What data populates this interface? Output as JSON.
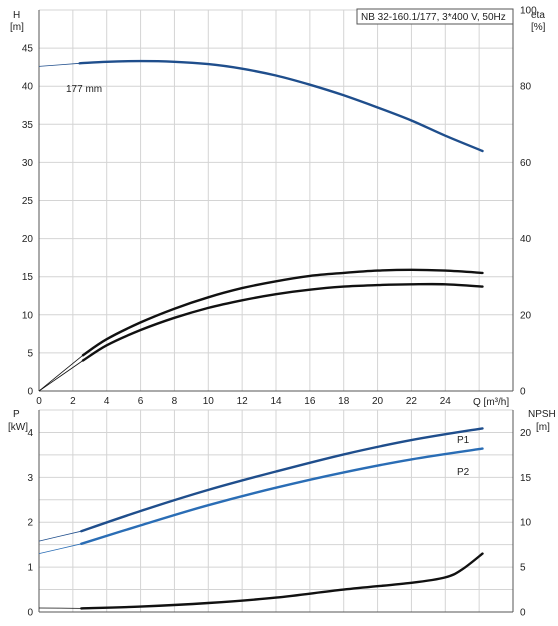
{
  "chart_data": [
    {
      "type": "line",
      "title": "NB 32-160.1/177, 3*400 V, 50Hz",
      "xlabel": "Q [m³/h]",
      "x_ticks": [
        0,
        2,
        4,
        6,
        8,
        10,
        12,
        14,
        16,
        18,
        20,
        22,
        24
      ],
      "xlim": [
        0,
        28
      ],
      "ylabel_left": [
        "H",
        "[m]"
      ],
      "ylim_left": [
        0,
        50
      ],
      "y_ticks_left": [
        0,
        5,
        10,
        15,
        20,
        25,
        30,
        35,
        40,
        45
      ],
      "ylabel_right": [
        "eta",
        "[%]"
      ],
      "ylim_right": [
        0,
        100
      ],
      "y_ticks_right": [
        0,
        20,
        40,
        60,
        80,
        100
      ],
      "grid": true,
      "series": [
        {
          "name": "177 mm",
          "axis": "left",
          "color": "#1f4e8c",
          "x": [
            0,
            2.4,
            4,
            6,
            8,
            10,
            12,
            14,
            16,
            18,
            20,
            22,
            24,
            26.2
          ],
          "y": [
            42.6,
            43.0,
            43.2,
            43.3,
            43.2,
            42.9,
            42.3,
            41.4,
            40.2,
            38.8,
            37.2,
            35.5,
            33.5,
            31.5
          ]
        },
        {
          "name": "",
          "axis": "left",
          "color": "#111111",
          "x": [
            0,
            2.6,
            4,
            6,
            8,
            10,
            12,
            14,
            16,
            18,
            20,
            22,
            24,
            26.2
          ],
          "y": [
            0,
            4.7,
            6.8,
            9.0,
            10.8,
            12.3,
            13.5,
            14.4,
            15.1,
            15.5,
            15.8,
            15.9,
            15.8,
            15.5
          ]
        },
        {
          "name": "",
          "axis": "left",
          "color": "#111111",
          "x": [
            0,
            2.6,
            4,
            6,
            8,
            10,
            12,
            14,
            16,
            18,
            20,
            22,
            24,
            26.2
          ],
          "y": [
            0,
            4.0,
            6.0,
            8.0,
            9.6,
            10.9,
            11.9,
            12.7,
            13.3,
            13.7,
            13.9,
            14.0,
            14.0,
            13.7
          ]
        }
      ]
    },
    {
      "type": "line",
      "xlim": [
        0,
        28
      ],
      "ylabel_left": [
        "P",
        "[kW]"
      ],
      "ylim_left": [
        0,
        4.5
      ],
      "y_ticks_left": [
        0,
        1,
        2,
        3,
        4
      ],
      "ylabel_right": [
        "NPSH",
        "[m]"
      ],
      "ylim_right": [
        0,
        22.5
      ],
      "y_ticks_right": [
        0,
        5,
        10,
        15,
        20
      ],
      "grid": true,
      "series": [
        {
          "name": "P1",
          "axis": "left",
          "color": "#1f4e8c",
          "x": [
            0,
            2.5,
            6,
            10,
            14,
            18,
            22,
            26.2
          ],
          "y": [
            1.58,
            1.8,
            2.25,
            2.72,
            3.13,
            3.51,
            3.83,
            4.09
          ]
        },
        {
          "name": "P2",
          "axis": "left",
          "color": "#2a6db5",
          "x": [
            0,
            2.5,
            6,
            10,
            14,
            18,
            22,
            26.2
          ],
          "y": [
            1.3,
            1.52,
            1.93,
            2.38,
            2.77,
            3.11,
            3.4,
            3.64
          ]
        },
        {
          "name": "",
          "axis": "left",
          "color": "#111111",
          "x": [
            0,
            2.5,
            6,
            10,
            14,
            18,
            22,
            24,
            25,
            26.2
          ],
          "y": [
            0.09,
            0.08,
            0.12,
            0.2,
            0.32,
            0.5,
            0.65,
            0.77,
            0.95,
            1.3
          ]
        }
      ]
    }
  ]
}
